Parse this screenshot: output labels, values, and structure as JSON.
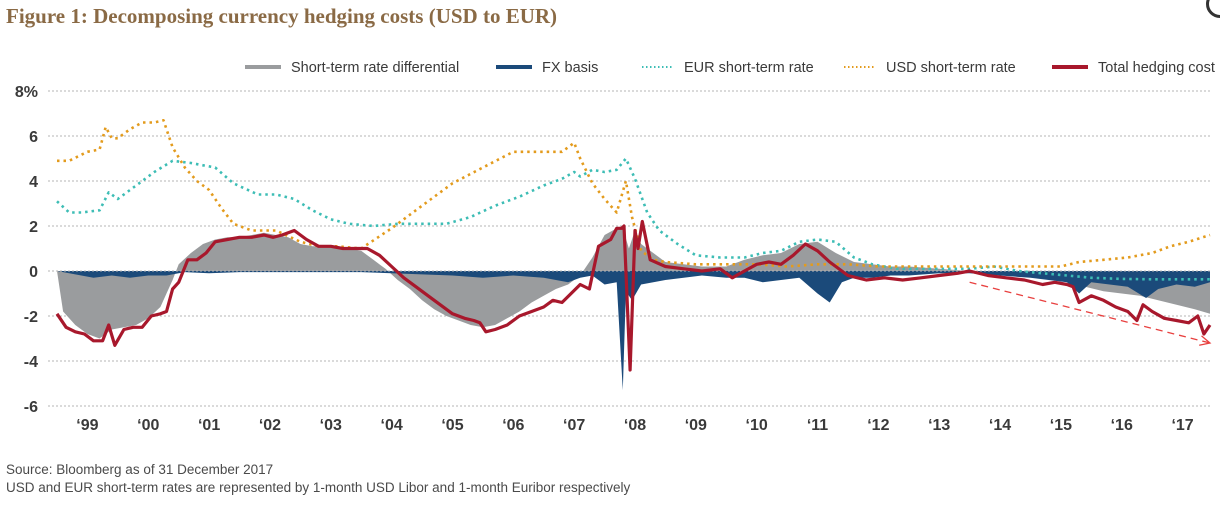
{
  "figure": {
    "title": "Figure  1: Decomposing currency hedging costs (USD to EUR)",
    "footer_source": "Source: Bloomberg as of 31 December 2017",
    "footer_note": "USD and EUR short-term rates are represented by 1-month USD Libor and 1-month Euribor respectively"
  },
  "chart_data": {
    "type": "line",
    "title": "Decomposing currency hedging costs (USD to EUR)",
    "xlabel": "",
    "ylabel": "%",
    "ylim": [
      -6,
      8
    ],
    "xlim": [
      1999.0,
      2018.0
    ],
    "grid": true,
    "legend_position": "top",
    "y_ticks": [
      {
        "value": 8,
        "label": "8%"
      },
      {
        "value": 6,
        "label": "6"
      },
      {
        "value": 4,
        "label": "4"
      },
      {
        "value": 2,
        "label": "2"
      },
      {
        "value": 0,
        "label": "0"
      },
      {
        "value": -2,
        "label": "-2"
      },
      {
        "value": -4,
        "label": "-4"
      },
      {
        "value": -6,
        "label": "-6"
      }
    ],
    "x_ticks": [
      {
        "value": 1999.5,
        "label": "‘99"
      },
      {
        "value": 2000.5,
        "label": "‘00"
      },
      {
        "value": 2001.5,
        "label": "‘01"
      },
      {
        "value": 2002.5,
        "label": "‘02"
      },
      {
        "value": 2003.5,
        "label": "‘03"
      },
      {
        "value": 2004.5,
        "label": "‘04"
      },
      {
        "value": 2005.5,
        "label": "‘05"
      },
      {
        "value": 2006.5,
        "label": "‘06"
      },
      {
        "value": 2007.5,
        "label": "‘07"
      },
      {
        "value": 2008.5,
        "label": "‘08"
      },
      {
        "value": 2009.5,
        "label": "‘09"
      },
      {
        "value": 2010.5,
        "label": "‘10"
      },
      {
        "value": 2011.5,
        "label": "‘11"
      },
      {
        "value": 2012.5,
        "label": "‘12"
      },
      {
        "value": 2013.5,
        "label": "‘13"
      },
      {
        "value": 2014.5,
        "label": "‘14"
      },
      {
        "value": 2015.5,
        "label": "‘15"
      },
      {
        "value": 2016.5,
        "label": "‘16"
      },
      {
        "value": 2017.5,
        "label": "‘17"
      }
    ],
    "series": [
      {
        "name": "Short-term rate differential",
        "kind": "area",
        "color": "#9a9c9e",
        "x": [
          1999.0,
          1999.1,
          1999.3,
          1999.5,
          1999.7,
          1999.9,
          2000.1,
          2000.3,
          2000.5,
          2000.7,
          2000.8,
          2000.9,
          2001.0,
          2001.2,
          2001.4,
          2001.6,
          2001.8,
          2002.0,
          2002.2,
          2002.4,
          2002.6,
          2002.8,
          2003.0,
          2003.2,
          2003.4,
          2003.6,
          2003.8,
          2004.0,
          2004.2,
          2004.4,
          2004.6,
          2004.8,
          2005.0,
          2005.2,
          2005.4,
          2005.6,
          2005.8,
          2006.0,
          2006.2,
          2006.4,
          2006.6,
          2006.8,
          2007.0,
          2007.2,
          2007.4,
          2007.6,
          2007.8,
          2008.0,
          2008.2,
          2008.3,
          2008.4,
          2008.5,
          2008.6,
          2008.8,
          2009.0,
          2009.3,
          2009.6,
          2010.0,
          2010.3,
          2010.6,
          2010.9,
          2011.2,
          2011.5,
          2011.8,
          2012.1,
          2012.4,
          2012.7,
          2013.0,
          2013.5,
          2014.0,
          2014.5,
          2015.0,
          2015.3,
          2015.6,
          2015.9,
          2016.2,
          2016.5,
          2016.8,
          2017.1,
          2017.4,
          2017.7,
          2017.95
        ],
        "values": [
          0.0,
          -1.8,
          -2.4,
          -2.8,
          -3.0,
          -2.6,
          -2.5,
          -2.4,
          -2.1,
          -1.6,
          -1.0,
          -0.4,
          0.3,
          0.8,
          1.2,
          1.4,
          1.5,
          1.5,
          1.6,
          1.7,
          1.6,
          1.5,
          1.2,
          1.1,
          1.1,
          1.0,
          1.0,
          0.9,
          0.5,
          0.1,
          -0.4,
          -0.8,
          -1.3,
          -1.7,
          -2.0,
          -2.2,
          -2.4,
          -2.5,
          -2.4,
          -2.1,
          -1.8,
          -1.4,
          -1.1,
          -0.8,
          -0.6,
          -0.2,
          0.6,
          1.6,
          1.9,
          1.9,
          1.0,
          1.8,
          1.2,
          0.8,
          0.4,
          0.3,
          0.2,
          0.2,
          0.5,
          0.7,
          0.8,
          1.2,
          1.3,
          0.8,
          0.4,
          0.3,
          0.2,
          0.2,
          0.1,
          0.0,
          -0.1,
          -0.2,
          -0.3,
          -0.5,
          -0.7,
          -0.9,
          -1.0,
          -1.1,
          -1.3,
          -1.5,
          -1.7,
          -1.9
        ]
      },
      {
        "name": "FX basis",
        "kind": "area",
        "color": "#1b4a7a",
        "x": [
          1999.0,
          1999.3,
          1999.6,
          1999.9,
          2000.2,
          2000.5,
          2000.8,
          2001.1,
          2001.5,
          2002.0,
          2002.5,
          2003.0,
          2003.5,
          2004.0,
          2004.5,
          2005.0,
          2005.5,
          2006.0,
          2006.5,
          2007.0,
          2007.4,
          2007.6,
          2007.8,
          2008.0,
          2008.2,
          2008.3,
          2008.35,
          2008.45,
          2008.6,
          2008.8,
          2009.0,
          2009.3,
          2009.6,
          2010.0,
          2010.3,
          2010.6,
          2010.9,
          2011.2,
          2011.5,
          2011.7,
          2011.9,
          2012.1,
          2012.4,
          2012.7,
          2013.0,
          2013.5,
          2014.0,
          2014.5,
          2015.0,
          2015.3,
          2015.6,
          2015.8,
          2016.0,
          2016.3,
          2016.6,
          2016.9,
          2017.1,
          2017.4,
          2017.7,
          2017.95
        ],
        "values": [
          0.0,
          -0.15,
          -0.3,
          -0.2,
          -0.3,
          -0.2,
          -0.2,
          -0.05,
          -0.1,
          -0.05,
          -0.05,
          -0.05,
          -0.05,
          -0.05,
          -0.1,
          -0.15,
          -0.2,
          -0.3,
          -0.2,
          -0.3,
          -0.5,
          -0.3,
          -0.2,
          -0.6,
          -0.5,
          -5.3,
          -0.9,
          -1.3,
          -0.6,
          -0.5,
          -0.4,
          -0.3,
          -0.2,
          -0.3,
          -0.3,
          -0.5,
          -0.4,
          -0.3,
          -1.0,
          -1.4,
          -0.5,
          -0.3,
          -0.3,
          -0.2,
          -0.2,
          -0.1,
          -0.1,
          -0.2,
          -0.3,
          -0.4,
          -0.5,
          -1.0,
          -0.5,
          -0.6,
          -0.7,
          -1.2,
          -0.8,
          -0.6,
          -0.7,
          -0.5
        ]
      },
      {
        "name": "EUR short-term rate",
        "kind": "line",
        "style": "dotted",
        "color": "#3dbdb5",
        "x": [
          1999.0,
          1999.2,
          1999.4,
          1999.7,
          1999.85,
          2000.0,
          2000.3,
          2000.6,
          2000.9,
          2001.2,
          2001.4,
          2001.6,
          2001.9,
          2002.3,
          2002.6,
          2002.9,
          2003.2,
          2003.5,
          2003.8,
          2004.2,
          2004.6,
          2005.0,
          2005.4,
          2005.8,
          2006.2,
          2006.6,
          2007.0,
          2007.3,
          2007.5,
          2007.6,
          2007.8,
          2008.0,
          2008.2,
          2008.35,
          2008.5,
          2008.7,
          2008.9,
          2009.2,
          2009.5,
          2009.9,
          2010.3,
          2010.6,
          2010.9,
          2011.2,
          2011.5,
          2011.8,
          2012.1,
          2012.4,
          2012.8,
          2013.2,
          2013.6,
          2014.0,
          2014.4,
          2014.8,
          2015.2,
          2015.6,
          2016.0,
          2016.5,
          2017.0,
          2017.5,
          2017.95
        ],
        "values": [
          3.1,
          2.6,
          2.6,
          2.7,
          3.5,
          3.2,
          3.8,
          4.4,
          4.9,
          4.8,
          4.7,
          4.6,
          3.9,
          3.4,
          3.4,
          3.2,
          2.7,
          2.3,
          2.1,
          2.0,
          2.1,
          2.1,
          2.1,
          2.4,
          2.9,
          3.3,
          3.8,
          4.1,
          4.4,
          4.2,
          4.5,
          4.4,
          4.5,
          5.0,
          4.1,
          2.6,
          1.8,
          1.2,
          0.7,
          0.6,
          0.6,
          0.8,
          0.9,
          1.3,
          1.4,
          1.3,
          0.6,
          0.3,
          0.1,
          0.1,
          0.1,
          0.1,
          0.2,
          0.0,
          -0.1,
          -0.2,
          -0.3,
          -0.35,
          -0.37,
          -0.37,
          -0.37
        ]
      },
      {
        "name": "USD short-term rate",
        "kind": "line",
        "style": "dotted",
        "color": "#e39b1d",
        "x": [
          1999.0,
          1999.2,
          1999.5,
          1999.7,
          1999.8,
          1999.9,
          2000.0,
          2000.2,
          2000.4,
          2000.6,
          2000.75,
          2000.9,
          2001.1,
          2001.3,
          2001.5,
          2001.7,
          2001.9,
          2002.2,
          2002.6,
          2003.0,
          2003.3,
          2003.6,
          2004.0,
          2004.5,
          2005.0,
          2005.5,
          2006.0,
          2006.5,
          2007.0,
          2007.3,
          2007.5,
          2007.6,
          2007.8,
          2008.0,
          2008.2,
          2008.35,
          2008.45,
          2008.6,
          2008.8,
          2009.0,
          2009.5,
          2010.0,
          2010.5,
          2011.0,
          2011.5,
          2012.0,
          2012.5,
          2013.0,
          2013.5,
          2014.0,
          2014.5,
          2015.0,
          2015.5,
          2015.8,
          2016.2,
          2016.6,
          2017.0,
          2017.3,
          2017.6,
          2017.95
        ],
        "values": [
          4.9,
          4.9,
          5.3,
          5.4,
          6.4,
          5.9,
          5.9,
          6.3,
          6.6,
          6.6,
          6.7,
          5.5,
          4.6,
          4.0,
          3.6,
          2.8,
          2.1,
          1.8,
          1.8,
          1.3,
          1.1,
          1.1,
          1.0,
          1.9,
          2.9,
          3.9,
          4.6,
          5.3,
          5.3,
          5.3,
          5.7,
          5.0,
          3.9,
          3.2,
          2.6,
          4.0,
          2.4,
          0.9,
          0.5,
          0.4,
          0.3,
          0.3,
          0.3,
          0.2,
          0.3,
          0.3,
          0.2,
          0.2,
          0.2,
          0.2,
          0.2,
          0.2,
          0.2,
          0.4,
          0.5,
          0.6,
          0.8,
          1.1,
          1.3,
          1.6
        ]
      },
      {
        "name": "Total hedging cost",
        "kind": "line",
        "style": "solid",
        "color": "#a8182c",
        "x": [
          1999.0,
          1999.15,
          1999.3,
          1999.45,
          1999.6,
          1999.75,
          1999.85,
          1999.95,
          2000.1,
          2000.25,
          2000.4,
          2000.55,
          2000.7,
          2000.8,
          2000.9,
          2001.0,
          2001.15,
          2001.3,
          2001.45,
          2001.6,
          2001.8,
          2002.0,
          2002.2,
          2002.4,
          2002.55,
          2002.7,
          2002.9,
          2003.1,
          2003.3,
          2003.5,
          2003.7,
          2003.9,
          2004.1,
          2004.3,
          2004.5,
          2004.7,
          2004.9,
          2005.1,
          2005.3,
          2005.5,
          2005.7,
          2005.85,
          2005.95,
          2006.05,
          2006.2,
          2006.4,
          2006.6,
          2006.8,
          2007.0,
          2007.15,
          2007.3,
          2007.45,
          2007.6,
          2007.75,
          2007.9,
          2008.1,
          2008.2,
          2008.28,
          2008.32,
          2008.42,
          2008.5,
          2008.55,
          2008.62,
          2008.75,
          2009.0,
          2009.3,
          2009.6,
          2009.9,
          2010.1,
          2010.3,
          2010.5,
          2010.7,
          2010.9,
          2011.1,
          2011.3,
          2011.5,
          2011.7,
          2011.8,
          2012.0,
          2012.3,
          2012.6,
          2012.9,
          2013.2,
          2013.5,
          2013.8,
          2014.0,
          2014.3,
          2014.6,
          2014.9,
          2015.2,
          2015.4,
          2015.6,
          2015.7,
          2015.8,
          2016.0,
          2016.2,
          2016.4,
          2016.6,
          2016.75,
          2016.85,
          2017.0,
          2017.2,
          2017.4,
          2017.6,
          2017.75,
          2017.85,
          2017.95
        ],
        "values": [
          -1.9,
          -2.5,
          -2.7,
          -2.8,
          -3.1,
          -3.1,
          -2.4,
          -3.3,
          -2.6,
          -2.5,
          -2.5,
          -2.0,
          -1.9,
          -1.8,
          -0.8,
          -0.5,
          0.5,
          0.5,
          0.8,
          1.3,
          1.4,
          1.5,
          1.5,
          1.6,
          1.5,
          1.6,
          1.8,
          1.4,
          1.1,
          1.1,
          1.0,
          1.0,
          1.0,
          0.7,
          0.2,
          -0.3,
          -0.7,
          -1.1,
          -1.5,
          -1.9,
          -2.1,
          -2.2,
          -2.3,
          -2.7,
          -2.6,
          -2.4,
          -2.0,
          -1.8,
          -1.6,
          -1.3,
          -1.4,
          -1.0,
          -0.6,
          -0.8,
          1.1,
          1.4,
          1.9,
          1.9,
          2.0,
          -4.4,
          1.8,
          1.0,
          2.2,
          0.5,
          0.2,
          0.1,
          0.0,
          0.1,
          -0.3,
          0.0,
          0.3,
          0.4,
          0.3,
          0.7,
          1.2,
          0.9,
          0.4,
          0.2,
          -0.2,
          -0.4,
          -0.3,
          -0.4,
          -0.3,
          -0.2,
          -0.1,
          0.0,
          -0.2,
          -0.3,
          -0.4,
          -0.6,
          -0.5,
          -0.6,
          -0.7,
          -1.4,
          -1.1,
          -1.3,
          -1.6,
          -1.8,
          -2.2,
          -1.5,
          -1.8,
          -2.1,
          -2.2,
          -2.3,
          -2.0,
          -2.8,
          -2.4
        ]
      }
    ],
    "annotations": [
      {
        "type": "dashed-arrow",
        "color": "#e8403f",
        "from": {
          "x": 2014.0,
          "y": -0.5
        },
        "to": {
          "x": 2017.95,
          "y": -3.2
        },
        "label": ""
      }
    ],
    "legend": [
      {
        "label": "Short-term rate differential",
        "color": "#9a9c9e",
        "style": "solid-thick"
      },
      {
        "label": "FX basis",
        "color": "#1b4a7a",
        "style": "solid-thick"
      },
      {
        "label": "EUR short-term rate",
        "color": "#3dbdb5",
        "style": "dotted"
      },
      {
        "label": "USD short-term rate",
        "color": "#e39b1d",
        "style": "dotted"
      },
      {
        "label": "Total hedging cost",
        "color": "#a8182c",
        "style": "solid-thick"
      }
    ]
  }
}
